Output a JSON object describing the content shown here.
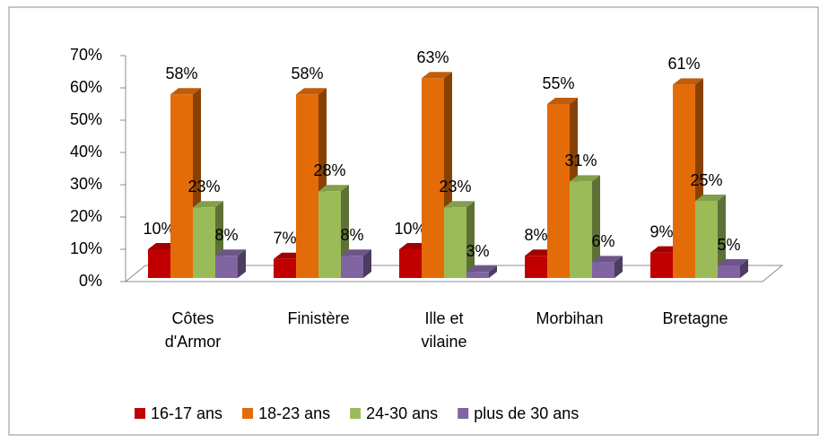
{
  "chart_data": {
    "type": "bar3d",
    "categories": [
      "Côtes d'Armor",
      "Finistère",
      "Ille et vilaine",
      "Morbihan",
      "Bretagne"
    ],
    "series": [
      {
        "name": "16-17 ans",
        "color": "#c00000",
        "values": [
          10,
          7,
          10,
          8,
          9
        ],
        "value_labels": [
          "10%",
          "7%",
          "10%",
          "8%",
          "9%"
        ]
      },
      {
        "name": "18-23 ans",
        "color": "#e36c09",
        "values": [
          58,
          58,
          63,
          55,
          61
        ],
        "value_labels": [
          "58%",
          "58%",
          "63%",
          "55%",
          "61%"
        ]
      },
      {
        "name": "24-30 ans",
        "color": "#9bbb59",
        "values": [
          23,
          28,
          23,
          31,
          25
        ],
        "value_labels": [
          "23%",
          "28%",
          "23%",
          "31%",
          "25%"
        ]
      },
      {
        "name": "plus de 30 ans",
        "color": "#8064a2",
        "values": [
          8,
          8,
          3,
          6,
          5
        ],
        "value_labels": [
          "8%",
          "8%",
          "3%",
          "6%",
          "5%"
        ]
      }
    ],
    "ylim": [
      0,
      70
    ],
    "yticks": [
      {
        "value": 0,
        "label": "0%"
      },
      {
        "value": 10,
        "label": "10%"
      },
      {
        "value": 20,
        "label": "20%"
      },
      {
        "value": 30,
        "label": "30%"
      },
      {
        "value": 40,
        "label": "40%"
      },
      {
        "value": 50,
        "label": "50%"
      },
      {
        "value": 60,
        "label": "60%"
      },
      {
        "value": 70,
        "label": "70%"
      }
    ],
    "legend": "bottom"
  }
}
